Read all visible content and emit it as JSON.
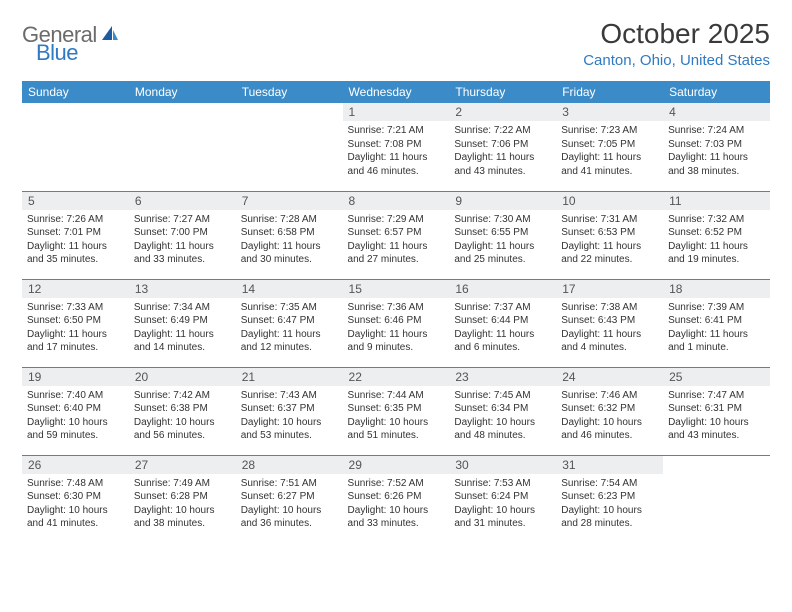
{
  "logo": {
    "text1": "General",
    "text2": "Blue"
  },
  "title": "October 2025",
  "location": "Canton, Ohio, United States",
  "colors": {
    "header_bg": "#3a8bc8",
    "header_text": "#ffffff",
    "daynum_bg": "#eceeef",
    "daynum_text": "#555555",
    "border": "#3a8bc8",
    "logo_blue": "#2f7ac0"
  },
  "weekdays": [
    "Sunday",
    "Monday",
    "Tuesday",
    "Wednesday",
    "Thursday",
    "Friday",
    "Saturday"
  ],
  "weeks": [
    [
      {
        "n": "",
        "sr": "",
        "ss": "",
        "d1": "",
        "d2": ""
      },
      {
        "n": "",
        "sr": "",
        "ss": "",
        "d1": "",
        "d2": ""
      },
      {
        "n": "",
        "sr": "",
        "ss": "",
        "d1": "",
        "d2": ""
      },
      {
        "n": "1",
        "sr": "Sunrise: 7:21 AM",
        "ss": "Sunset: 7:08 PM",
        "d1": "Daylight: 11 hours",
        "d2": "and 46 minutes."
      },
      {
        "n": "2",
        "sr": "Sunrise: 7:22 AM",
        "ss": "Sunset: 7:06 PM",
        "d1": "Daylight: 11 hours",
        "d2": "and 43 minutes."
      },
      {
        "n": "3",
        "sr": "Sunrise: 7:23 AM",
        "ss": "Sunset: 7:05 PM",
        "d1": "Daylight: 11 hours",
        "d2": "and 41 minutes."
      },
      {
        "n": "4",
        "sr": "Sunrise: 7:24 AM",
        "ss": "Sunset: 7:03 PM",
        "d1": "Daylight: 11 hours",
        "d2": "and 38 minutes."
      }
    ],
    [
      {
        "n": "5",
        "sr": "Sunrise: 7:26 AM",
        "ss": "Sunset: 7:01 PM",
        "d1": "Daylight: 11 hours",
        "d2": "and 35 minutes."
      },
      {
        "n": "6",
        "sr": "Sunrise: 7:27 AM",
        "ss": "Sunset: 7:00 PM",
        "d1": "Daylight: 11 hours",
        "d2": "and 33 minutes."
      },
      {
        "n": "7",
        "sr": "Sunrise: 7:28 AM",
        "ss": "Sunset: 6:58 PM",
        "d1": "Daylight: 11 hours",
        "d2": "and 30 minutes."
      },
      {
        "n": "8",
        "sr": "Sunrise: 7:29 AM",
        "ss": "Sunset: 6:57 PM",
        "d1": "Daylight: 11 hours",
        "d2": "and 27 minutes."
      },
      {
        "n": "9",
        "sr": "Sunrise: 7:30 AM",
        "ss": "Sunset: 6:55 PM",
        "d1": "Daylight: 11 hours",
        "d2": "and 25 minutes."
      },
      {
        "n": "10",
        "sr": "Sunrise: 7:31 AM",
        "ss": "Sunset: 6:53 PM",
        "d1": "Daylight: 11 hours",
        "d2": "and 22 minutes."
      },
      {
        "n": "11",
        "sr": "Sunrise: 7:32 AM",
        "ss": "Sunset: 6:52 PM",
        "d1": "Daylight: 11 hours",
        "d2": "and 19 minutes."
      }
    ],
    [
      {
        "n": "12",
        "sr": "Sunrise: 7:33 AM",
        "ss": "Sunset: 6:50 PM",
        "d1": "Daylight: 11 hours",
        "d2": "and 17 minutes."
      },
      {
        "n": "13",
        "sr": "Sunrise: 7:34 AM",
        "ss": "Sunset: 6:49 PM",
        "d1": "Daylight: 11 hours",
        "d2": "and 14 minutes."
      },
      {
        "n": "14",
        "sr": "Sunrise: 7:35 AM",
        "ss": "Sunset: 6:47 PM",
        "d1": "Daylight: 11 hours",
        "d2": "and 12 minutes."
      },
      {
        "n": "15",
        "sr": "Sunrise: 7:36 AM",
        "ss": "Sunset: 6:46 PM",
        "d1": "Daylight: 11 hours",
        "d2": "and 9 minutes."
      },
      {
        "n": "16",
        "sr": "Sunrise: 7:37 AM",
        "ss": "Sunset: 6:44 PM",
        "d1": "Daylight: 11 hours",
        "d2": "and 6 minutes."
      },
      {
        "n": "17",
        "sr": "Sunrise: 7:38 AM",
        "ss": "Sunset: 6:43 PM",
        "d1": "Daylight: 11 hours",
        "d2": "and 4 minutes."
      },
      {
        "n": "18",
        "sr": "Sunrise: 7:39 AM",
        "ss": "Sunset: 6:41 PM",
        "d1": "Daylight: 11 hours",
        "d2": "and 1 minute."
      }
    ],
    [
      {
        "n": "19",
        "sr": "Sunrise: 7:40 AM",
        "ss": "Sunset: 6:40 PM",
        "d1": "Daylight: 10 hours",
        "d2": "and 59 minutes."
      },
      {
        "n": "20",
        "sr": "Sunrise: 7:42 AM",
        "ss": "Sunset: 6:38 PM",
        "d1": "Daylight: 10 hours",
        "d2": "and 56 minutes."
      },
      {
        "n": "21",
        "sr": "Sunrise: 7:43 AM",
        "ss": "Sunset: 6:37 PM",
        "d1": "Daylight: 10 hours",
        "d2": "and 53 minutes."
      },
      {
        "n": "22",
        "sr": "Sunrise: 7:44 AM",
        "ss": "Sunset: 6:35 PM",
        "d1": "Daylight: 10 hours",
        "d2": "and 51 minutes."
      },
      {
        "n": "23",
        "sr": "Sunrise: 7:45 AM",
        "ss": "Sunset: 6:34 PM",
        "d1": "Daylight: 10 hours",
        "d2": "and 48 minutes."
      },
      {
        "n": "24",
        "sr": "Sunrise: 7:46 AM",
        "ss": "Sunset: 6:32 PM",
        "d1": "Daylight: 10 hours",
        "d2": "and 46 minutes."
      },
      {
        "n": "25",
        "sr": "Sunrise: 7:47 AM",
        "ss": "Sunset: 6:31 PM",
        "d1": "Daylight: 10 hours",
        "d2": "and 43 minutes."
      }
    ],
    [
      {
        "n": "26",
        "sr": "Sunrise: 7:48 AM",
        "ss": "Sunset: 6:30 PM",
        "d1": "Daylight: 10 hours",
        "d2": "and 41 minutes."
      },
      {
        "n": "27",
        "sr": "Sunrise: 7:49 AM",
        "ss": "Sunset: 6:28 PM",
        "d1": "Daylight: 10 hours",
        "d2": "and 38 minutes."
      },
      {
        "n": "28",
        "sr": "Sunrise: 7:51 AM",
        "ss": "Sunset: 6:27 PM",
        "d1": "Daylight: 10 hours",
        "d2": "and 36 minutes."
      },
      {
        "n": "29",
        "sr": "Sunrise: 7:52 AM",
        "ss": "Sunset: 6:26 PM",
        "d1": "Daylight: 10 hours",
        "d2": "and 33 minutes."
      },
      {
        "n": "30",
        "sr": "Sunrise: 7:53 AM",
        "ss": "Sunset: 6:24 PM",
        "d1": "Daylight: 10 hours",
        "d2": "and 31 minutes."
      },
      {
        "n": "31",
        "sr": "Sunrise: 7:54 AM",
        "ss": "Sunset: 6:23 PM",
        "d1": "Daylight: 10 hours",
        "d2": "and 28 minutes."
      },
      {
        "n": "",
        "sr": "",
        "ss": "",
        "d1": "",
        "d2": ""
      }
    ]
  ]
}
